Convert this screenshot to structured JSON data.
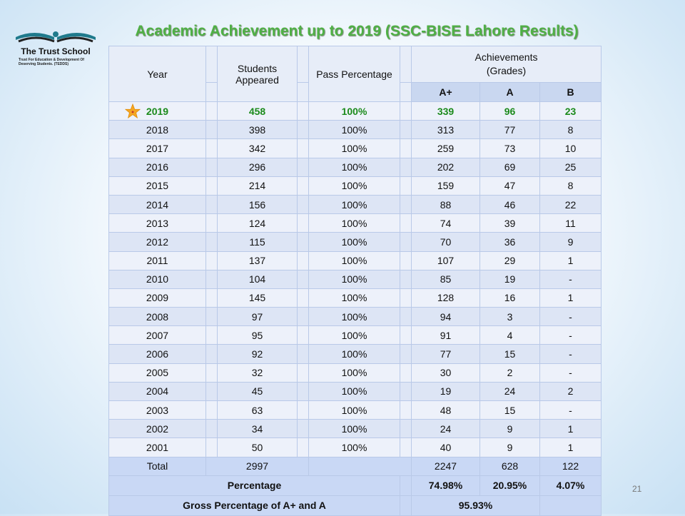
{
  "logo": {
    "name": "The Trust School",
    "subtitle": "Trust For Education & Development Of Deserving Students. (TEDDS)"
  },
  "title": "Academic Achievement up to 2019 (SSC-BISE Lahore Results)",
  "slide_number": "21",
  "headers": {
    "year": "Year",
    "students": "Students Appeared",
    "pass": "Pass Percentage",
    "achievements": "Achievements",
    "grades": "(Grades)",
    "a_plus": "A+",
    "a": "A",
    "b": "B"
  },
  "rows": [
    {
      "year": "2019",
      "students": "458",
      "pass": "100%",
      "a_plus": "339",
      "a": "96",
      "b": "23"
    },
    {
      "year": "2018",
      "students": "398",
      "pass": "100%",
      "a_plus": "313",
      "a": "77",
      "b": "8"
    },
    {
      "year": "2017",
      "students": "342",
      "pass": "100%",
      "a_plus": "259",
      "a": "73",
      "b": "10"
    },
    {
      "year": "2016",
      "students": "296",
      "pass": "100%",
      "a_plus": "202",
      "a": "69",
      "b": "25"
    },
    {
      "year": "2015",
      "students": "214",
      "pass": "100%",
      "a_plus": "159",
      "a": "47",
      "b": "8"
    },
    {
      "year": "2014",
      "students": "156",
      "pass": "100%",
      "a_plus": "88",
      "a": "46",
      "b": "22"
    },
    {
      "year": "2013",
      "students": "124",
      "pass": "100%",
      "a_plus": "74",
      "a": "39",
      "b": "11"
    },
    {
      "year": "2012",
      "students": "115",
      "pass": "100%",
      "a_plus": "70",
      "a": "36",
      "b": "9"
    },
    {
      "year": "2011",
      "students": "137",
      "pass": "100%",
      "a_plus": "107",
      "a": "29",
      "b": "1"
    },
    {
      "year": "2010",
      "students": "104",
      "pass": "100%",
      "a_plus": "85",
      "a": "19",
      "b": "-"
    },
    {
      "year": "2009",
      "students": "145",
      "pass": "100%",
      "a_plus": "128",
      "a": "16",
      "b": "1"
    },
    {
      "year": "2008",
      "students": "97",
      "pass": "100%",
      "a_plus": "94",
      "a": "3",
      "b": "-"
    },
    {
      "year": "2007",
      "students": "95",
      "pass": "100%",
      "a_plus": "91",
      "a": "4",
      "b": "-"
    },
    {
      "year": "2006",
      "students": "92",
      "pass": "100%",
      "a_plus": "77",
      "a": "15",
      "b": "-"
    },
    {
      "year": "2005",
      "students": "32",
      "pass": "100%",
      "a_plus": "30",
      "a": "2",
      "b": "-"
    },
    {
      "year": "2004",
      "students": "45",
      "pass": "100%",
      "a_plus": "19",
      "a": "24",
      "b": "2"
    },
    {
      "year": "2003",
      "students": "63",
      "pass": "100%",
      "a_plus": "48",
      "a": "15",
      "b": "-"
    },
    {
      "year": "2002",
      "students": "34",
      "pass": "100%",
      "a_plus": "24",
      "a": "9",
      "b": "1"
    },
    {
      "year": "2001",
      "students": "50",
      "pass": "100%",
      "a_plus": "40",
      "a": "9",
      "b": "1"
    }
  ],
  "total": {
    "label": "Total",
    "students": "2997",
    "a_plus": "2247",
    "a": "628",
    "b": "122"
  },
  "percentage": {
    "label": "Percentage",
    "a_plus": "74.98%",
    "a": "20.95%",
    "b": "4.07%"
  },
  "gross": {
    "label": "Gross Percentage of A+ and A",
    "value": "95.93%"
  },
  "colors": {
    "title": "#4fb045",
    "highlight_row": "#1b8a1b",
    "star": "#f5a623"
  }
}
